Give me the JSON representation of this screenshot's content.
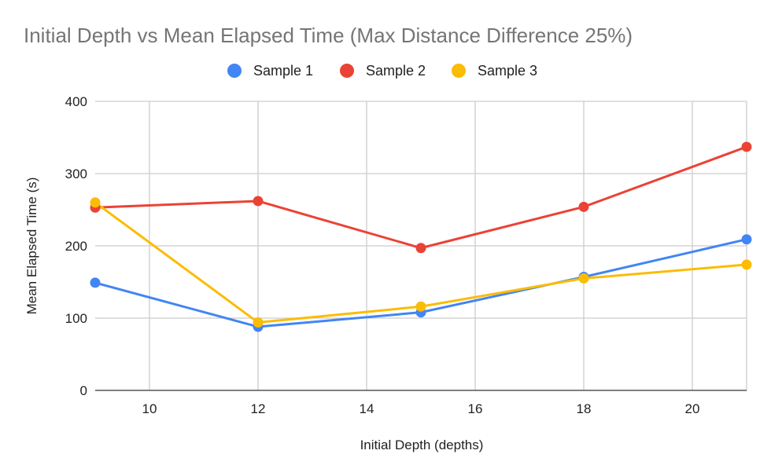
{
  "chart_data": {
    "type": "line",
    "title": "Initial Depth vs Mean Elapsed Time (Max Distance Difference 25%)",
    "xlabel": "Initial Depth (depths)",
    "ylabel": "Mean Elapsed Time (s)",
    "x": [
      9,
      12,
      15,
      18,
      21
    ],
    "xlim": [
      9,
      21
    ],
    "ylim": [
      0,
      400
    ],
    "xticks": [
      10,
      12,
      14,
      16,
      18,
      20
    ],
    "yticks": [
      0,
      100,
      200,
      300,
      400
    ],
    "grid": true,
    "legend_position": "top",
    "series": [
      {
        "name": "Sample 1",
        "color": "#4285f4",
        "values": [
          149,
          88,
          108,
          157,
          209
        ]
      },
      {
        "name": "Sample 2",
        "color": "#ea4335",
        "values": [
          253,
          262,
          197,
          254,
          337
        ]
      },
      {
        "name": "Sample 3",
        "color": "#fbbc04",
        "values": [
          260,
          94,
          116,
          155,
          174
        ]
      }
    ]
  }
}
